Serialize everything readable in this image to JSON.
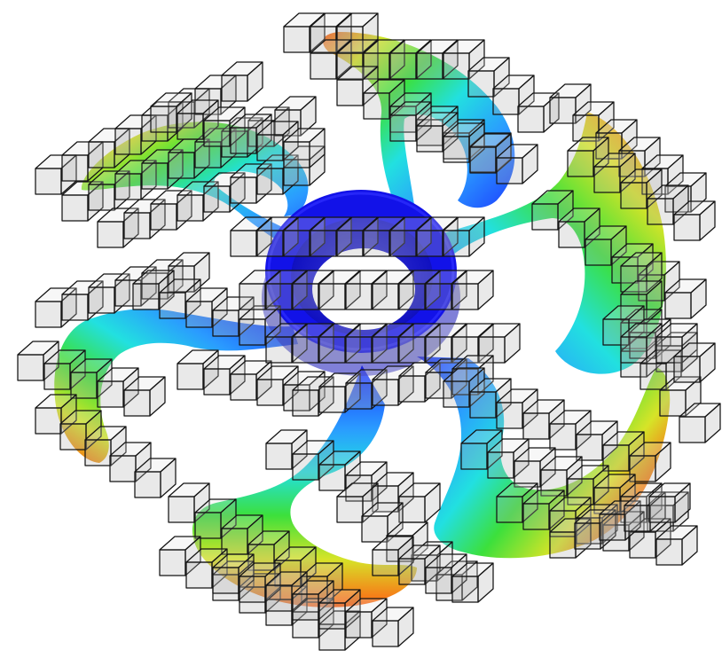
{
  "figure": {
    "subject": "impeller-blade-field-with-voxel-cage",
    "blade_count": 6,
    "colormap": {
      "name": "jet",
      "stops": [
        "#0a1aff",
        "#2aa0ff",
        "#22e0e0",
        "#3ce03c",
        "#c8e628",
        "#ffb020",
        "#ff4a10"
      ]
    },
    "hub_color": "#1414e6",
    "voxel_edge_color": "#141414",
    "voxel_face_color": "#c8c8c8",
    "background": "#ffffff"
  }
}
